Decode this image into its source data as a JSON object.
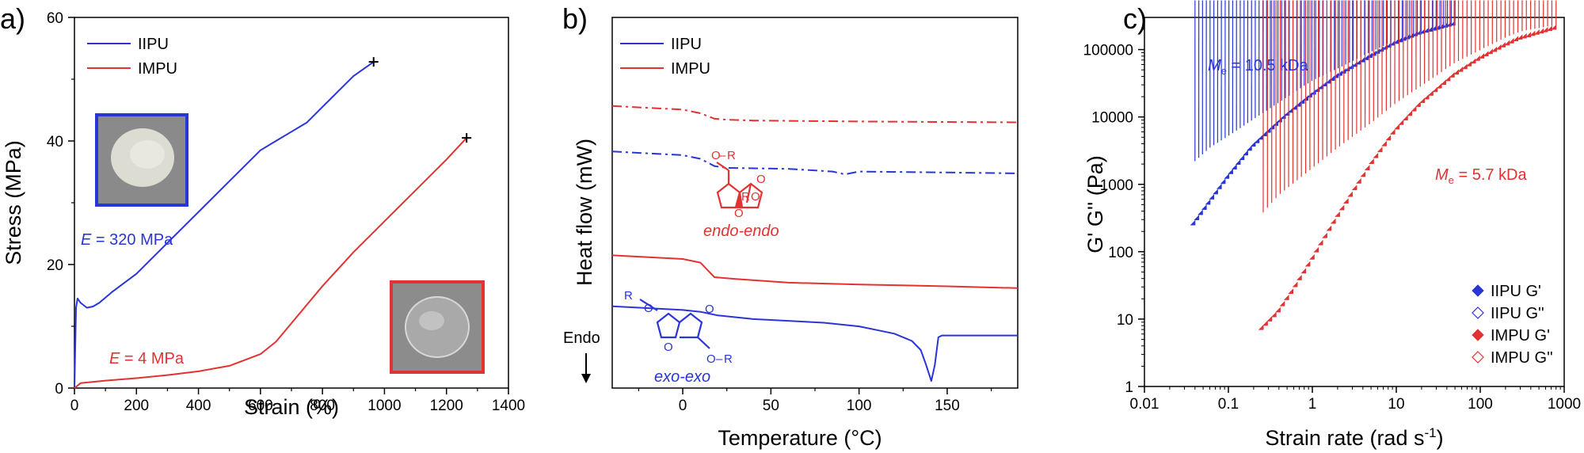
{
  "colors": {
    "blue": "#2a35d6",
    "red": "#e23232"
  },
  "chart_data": [
    {
      "panel": "a)",
      "type": "line",
      "xlabel": "Strain (%)",
      "ylabel": "Stress (MPa)",
      "xlim": [
        0,
        1400
      ],
      "ylim": [
        0,
        60
      ],
      "xticks": [
        0,
        200,
        400,
        600,
        800,
        1000,
        1200,
        1400
      ],
      "yticks": [
        0,
        20,
        40,
        60
      ],
      "legend": "top-left",
      "series": [
        {
          "name": "IIPU",
          "color": "#2a35d6",
          "x": [
            0,
            5,
            10,
            20,
            40,
            60,
            80,
            120,
            200,
            300,
            400,
            500,
            600,
            650,
            700,
            750,
            800,
            850,
            900,
            965
          ],
          "y": [
            0,
            13,
            14.5,
            13.8,
            13.0,
            13.2,
            13.8,
            15.5,
            18.5,
            23.5,
            28.5,
            33.5,
            38.5,
            40,
            41.5,
            43,
            45.5,
            48,
            50.5,
            52.8
          ],
          "end_marker": "+"
        },
        {
          "name": "IMPU",
          "color": "#e23232",
          "x": [
            0,
            20,
            100,
            200,
            300,
            400,
            500,
            600,
            650,
            700,
            800,
            900,
            1000,
            1100,
            1200,
            1265
          ],
          "y": [
            0,
            0.8,
            1.2,
            1.6,
            2.1,
            2.7,
            3.6,
            5.5,
            7.5,
            10.5,
            16.5,
            22,
            27,
            32,
            37,
            40.5
          ],
          "end_marker": "+"
        }
      ],
      "annotations": [
        {
          "text_prefix": "E",
          "text": " = 320 MPa",
          "color": "#2a35d6"
        },
        {
          "text_prefix": "E",
          "text": " = 4 MPa",
          "color": "#e23232"
        }
      ]
    },
    {
      "panel": "b)",
      "type": "line",
      "xlabel": "Temperature (°C)",
      "ylabel": "Heat flow (mW)",
      "xlim": [
        -40,
        190
      ],
      "xticks": [
        0,
        50,
        100,
        150
      ],
      "yticks": [],
      "legend": "top-left",
      "series": [
        {
          "name": "IIPU",
          "color": "#2a35d6"
        },
        {
          "name": "IMPU",
          "color": "#e23232"
        }
      ],
      "curves": [
        {
          "series": "IMPU",
          "style": "dashdot",
          "x": [
            -40,
            0,
            10,
            18,
            25,
            40,
            100,
            190
          ],
          "y": [
            54,
            52,
            50,
            47,
            46.5,
            46,
            45.5,
            45
          ]
        },
        {
          "series": "IIPU",
          "style": "dashdot",
          "x": [
            -40,
            0,
            10,
            18,
            25,
            60,
            85,
            92,
            100,
            150,
            190
          ],
          "y": [
            29,
            27,
            25,
            21,
            20,
            19.5,
            18,
            16.5,
            18,
            17.5,
            17
          ]
        },
        {
          "series": "IMPU",
          "style": "solid",
          "x": [
            -40,
            0,
            10,
            14,
            18,
            30,
            60,
            100,
            150,
            190
          ],
          "y": [
            -28,
            -30,
            -32,
            -36,
            -40,
            -41,
            -43,
            -44,
            -45,
            -46
          ]
        },
        {
          "series": "IIPU",
          "style": "solid",
          "x": [
            -40,
            0,
            10,
            20,
            40,
            80,
            100,
            110,
            120,
            130,
            135,
            138,
            141,
            143,
            145,
            147,
            150,
            160,
            190
          ],
          "y": [
            -56,
            -58,
            -59,
            -61,
            -63,
            -65,
            -67,
            -69,
            -71,
            -75,
            -80,
            -88,
            -97,
            -88,
            -73,
            -72,
            -72,
            -72,
            -72
          ]
        }
      ],
      "annotations": [
        {
          "text": "endo-endo",
          "color": "#e23232"
        },
        {
          "text": "exo-exo",
          "color": "#2a35d6"
        },
        {
          "text": "Endo",
          "color": "#000000"
        }
      ],
      "structure_labels": {
        "r": "R",
        "o": "O",
        "dash": "–"
      }
    },
    {
      "panel": "c)",
      "type": "scatter",
      "xlabel": "Strain rate (rad s",
      "xlabel_sup": "-1",
      "xlabel_close": ")",
      "ylabel": "G' G'' (Pa)",
      "xscale": "log",
      "yscale": "log",
      "xlim": [
        0.01,
        1000
      ],
      "ylim": [
        1,
        300000
      ],
      "xticks": [
        "0.01",
        "0.1",
        "1",
        "10",
        "100",
        "1000"
      ],
      "yticks": [
        "1",
        "10",
        "100",
        "1000",
        "10000",
        "100000"
      ],
      "legend": "bottom-right",
      "series": [
        {
          "name": "IIPU G'",
          "color": "#2a35d6",
          "marker": "filled-diamond",
          "x": [
            0.04,
            0.06,
            0.1,
            0.2,
            0.5,
            1,
            2,
            5,
            10,
            20,
            50
          ],
          "y": [
            250,
            500,
            1200,
            3500,
            10000,
            20000,
            38000,
            75000,
            120000,
            170000,
            230000
          ]
        },
        {
          "name": "IIPU G''",
          "color": "#2a35d6",
          "marker": "open-diamond",
          "x": [
            0.04,
            0.06,
            0.1,
            0.2,
            0.5,
            1,
            2,
            5,
            10,
            20,
            50
          ],
          "y": [
            1900,
            3000,
            4500,
            8000,
            17000,
            30000,
            45000,
            80000,
            120000,
            165000,
            230000
          ]
        },
        {
          "name": "IMPU G'",
          "color": "#e23232",
          "marker": "filled-diamond",
          "x": [
            0.26,
            0.4,
            0.6,
            1,
            2,
            5,
            10,
            20,
            50,
            100,
            200,
            300,
            800
          ],
          "y": [
            7,
            12,
            25,
            70,
            300,
            1800,
            6000,
            15000,
            40000,
            70000,
            110000,
            140000,
            200000
          ]
        },
        {
          "name": "IMPU G''",
          "color": "#e23232",
          "marker": "open-diamond",
          "x": [
            0.26,
            0.4,
            0.6,
            1,
            2,
            5,
            10,
            20,
            50,
            100,
            200,
            300,
            800
          ],
          "y": [
            330,
            600,
            900,
            1500,
            3000,
            7000,
            14000,
            25000,
            55000,
            85000,
            130000,
            160000,
            200000
          ]
        }
      ],
      "annotations": [
        {
          "text_prefix": "M",
          "text_sub": "e",
          "text": " = 10.5 kDa",
          "color": "#2a35d6"
        },
        {
          "text_prefix": "M",
          "text_sub": "e",
          "text": " = 5.7 kDa",
          "color": "#e23232"
        }
      ]
    }
  ]
}
